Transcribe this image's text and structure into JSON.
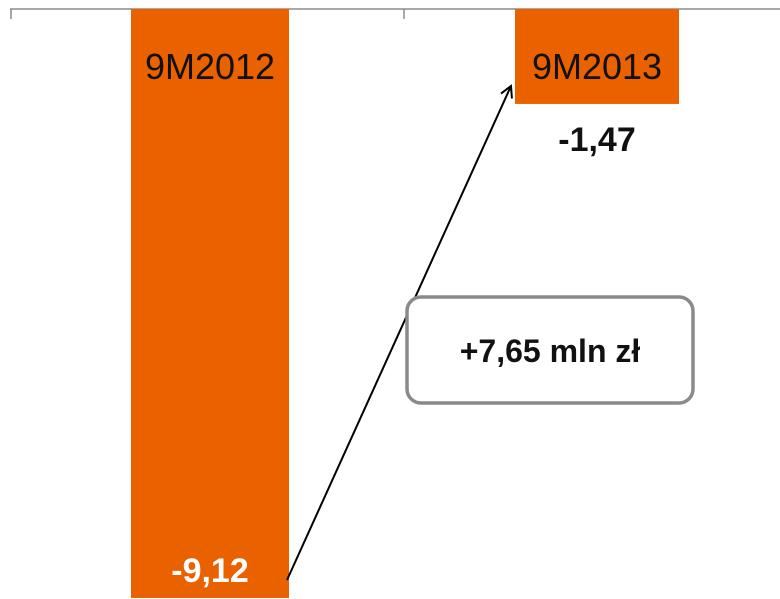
{
  "chart_data": {
    "type": "bar",
    "categories": [
      "9M2012",
      "9M2013"
    ],
    "values": [
      -9.12,
      -1.47
    ],
    "value_labels": [
      "-9,12",
      "-1,47"
    ],
    "ylim": [
      -9.12,
      0
    ],
    "grid": false,
    "bar_color": "#EA6100",
    "annotation": {
      "text": "+7,65 mln zł",
      "from_category": "9M2012",
      "to_category": "9M2013"
    }
  }
}
